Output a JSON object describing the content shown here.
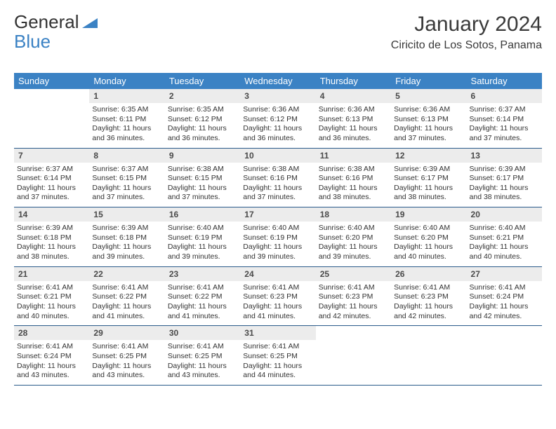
{
  "logo": {
    "general": "General",
    "blue": "Blue"
  },
  "title": "January 2024",
  "location": "Ciricito de Los Sotos, Panama",
  "header_bg": "#3b82c4",
  "weekdays": [
    "Sunday",
    "Monday",
    "Tuesday",
    "Wednesday",
    "Thursday",
    "Friday",
    "Saturday"
  ],
  "weeks": [
    [
      {
        "day": "",
        "lines": []
      },
      {
        "day": "1",
        "lines": [
          "Sunrise: 6:35 AM",
          "Sunset: 6:11 PM",
          "Daylight: 11 hours and 36 minutes."
        ]
      },
      {
        "day": "2",
        "lines": [
          "Sunrise: 6:35 AM",
          "Sunset: 6:12 PM",
          "Daylight: 11 hours and 36 minutes."
        ]
      },
      {
        "day": "3",
        "lines": [
          "Sunrise: 6:36 AM",
          "Sunset: 6:12 PM",
          "Daylight: 11 hours and 36 minutes."
        ]
      },
      {
        "day": "4",
        "lines": [
          "Sunrise: 6:36 AM",
          "Sunset: 6:13 PM",
          "Daylight: 11 hours and 36 minutes."
        ]
      },
      {
        "day": "5",
        "lines": [
          "Sunrise: 6:36 AM",
          "Sunset: 6:13 PM",
          "Daylight: 11 hours and 37 minutes."
        ]
      },
      {
        "day": "6",
        "lines": [
          "Sunrise: 6:37 AM",
          "Sunset: 6:14 PM",
          "Daylight: 11 hours and 37 minutes."
        ]
      }
    ],
    [
      {
        "day": "7",
        "lines": [
          "Sunrise: 6:37 AM",
          "Sunset: 6:14 PM",
          "Daylight: 11 hours and 37 minutes."
        ]
      },
      {
        "day": "8",
        "lines": [
          "Sunrise: 6:37 AM",
          "Sunset: 6:15 PM",
          "Daylight: 11 hours and 37 minutes."
        ]
      },
      {
        "day": "9",
        "lines": [
          "Sunrise: 6:38 AM",
          "Sunset: 6:15 PM",
          "Daylight: 11 hours and 37 minutes."
        ]
      },
      {
        "day": "10",
        "lines": [
          "Sunrise: 6:38 AM",
          "Sunset: 6:16 PM",
          "Daylight: 11 hours and 37 minutes."
        ]
      },
      {
        "day": "11",
        "lines": [
          "Sunrise: 6:38 AM",
          "Sunset: 6:16 PM",
          "Daylight: 11 hours and 38 minutes."
        ]
      },
      {
        "day": "12",
        "lines": [
          "Sunrise: 6:39 AM",
          "Sunset: 6:17 PM",
          "Daylight: 11 hours and 38 minutes."
        ]
      },
      {
        "day": "13",
        "lines": [
          "Sunrise: 6:39 AM",
          "Sunset: 6:17 PM",
          "Daylight: 11 hours and 38 minutes."
        ]
      }
    ],
    [
      {
        "day": "14",
        "lines": [
          "Sunrise: 6:39 AM",
          "Sunset: 6:18 PM",
          "Daylight: 11 hours and 38 minutes."
        ]
      },
      {
        "day": "15",
        "lines": [
          "Sunrise: 6:39 AM",
          "Sunset: 6:18 PM",
          "Daylight: 11 hours and 39 minutes."
        ]
      },
      {
        "day": "16",
        "lines": [
          "Sunrise: 6:40 AM",
          "Sunset: 6:19 PM",
          "Daylight: 11 hours and 39 minutes."
        ]
      },
      {
        "day": "17",
        "lines": [
          "Sunrise: 6:40 AM",
          "Sunset: 6:19 PM",
          "Daylight: 11 hours and 39 minutes."
        ]
      },
      {
        "day": "18",
        "lines": [
          "Sunrise: 6:40 AM",
          "Sunset: 6:20 PM",
          "Daylight: 11 hours and 39 minutes."
        ]
      },
      {
        "day": "19",
        "lines": [
          "Sunrise: 6:40 AM",
          "Sunset: 6:20 PM",
          "Daylight: 11 hours and 40 minutes."
        ]
      },
      {
        "day": "20",
        "lines": [
          "Sunrise: 6:40 AM",
          "Sunset: 6:21 PM",
          "Daylight: 11 hours and 40 minutes."
        ]
      }
    ],
    [
      {
        "day": "21",
        "lines": [
          "Sunrise: 6:41 AM",
          "Sunset: 6:21 PM",
          "Daylight: 11 hours and 40 minutes."
        ]
      },
      {
        "day": "22",
        "lines": [
          "Sunrise: 6:41 AM",
          "Sunset: 6:22 PM",
          "Daylight: 11 hours and 41 minutes."
        ]
      },
      {
        "day": "23",
        "lines": [
          "Sunrise: 6:41 AM",
          "Sunset: 6:22 PM",
          "Daylight: 11 hours and 41 minutes."
        ]
      },
      {
        "day": "24",
        "lines": [
          "Sunrise: 6:41 AM",
          "Sunset: 6:23 PM",
          "Daylight: 11 hours and 41 minutes."
        ]
      },
      {
        "day": "25",
        "lines": [
          "Sunrise: 6:41 AM",
          "Sunset: 6:23 PM",
          "Daylight: 11 hours and 42 minutes."
        ]
      },
      {
        "day": "26",
        "lines": [
          "Sunrise: 6:41 AM",
          "Sunset: 6:23 PM",
          "Daylight: 11 hours and 42 minutes."
        ]
      },
      {
        "day": "27",
        "lines": [
          "Sunrise: 6:41 AM",
          "Sunset: 6:24 PM",
          "Daylight: 11 hours and 42 minutes."
        ]
      }
    ],
    [
      {
        "day": "28",
        "lines": [
          "Sunrise: 6:41 AM",
          "Sunset: 6:24 PM",
          "Daylight: 11 hours and 43 minutes."
        ]
      },
      {
        "day": "29",
        "lines": [
          "Sunrise: 6:41 AM",
          "Sunset: 6:25 PM",
          "Daylight: 11 hours and 43 minutes."
        ]
      },
      {
        "day": "30",
        "lines": [
          "Sunrise: 6:41 AM",
          "Sunset: 6:25 PM",
          "Daylight: 11 hours and 43 minutes."
        ]
      },
      {
        "day": "31",
        "lines": [
          "Sunrise: 6:41 AM",
          "Sunset: 6:25 PM",
          "Daylight: 11 hours and 44 minutes."
        ]
      },
      {
        "day": "",
        "lines": []
      },
      {
        "day": "",
        "lines": []
      },
      {
        "day": "",
        "lines": []
      }
    ]
  ]
}
